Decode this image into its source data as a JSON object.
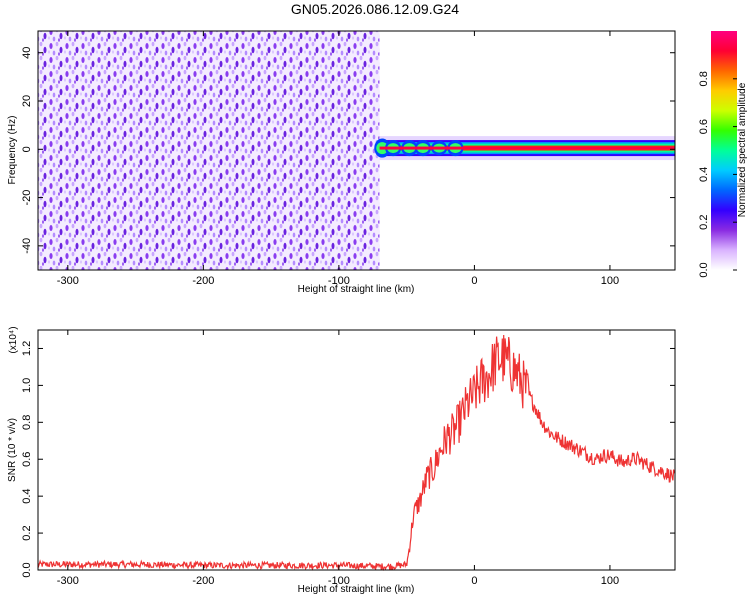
{
  "page": {
    "title": "GN05.2026.086.12.09.G24"
  },
  "chart_data": [
    {
      "type": "heatmap",
      "title": "",
      "xlabel": "Height of straight line (km)",
      "ylabel": "Frequency (Hz)",
      "xlim": [
        -322,
        148
      ],
      "ylim": [
        -50,
        49
      ],
      "xticks": [
        -300,
        -200,
        -100,
        0,
        100
      ],
      "yticks": [
        -40,
        -20,
        0,
        20,
        40
      ],
      "noise_region": {
        "x_range": [
          -322,
          -70
        ],
        "freq_range": [
          -50,
          49
        ],
        "level": "0.1-0.3"
      },
      "signal_band": {
        "x_range": [
          -70,
          148
        ],
        "frequency": 0.5,
        "bandwidth": 2,
        "peak_level": 0.95
      },
      "colorbar": {
        "label": "Normalized spectral amplitude",
        "range": [
          0,
          1
        ],
        "ticks": [
          "0.0",
          "0.2",
          "0.4",
          "0.6",
          "0.8"
        ],
        "colors": [
          "#ffffff",
          "#d9b3ff",
          "#8a2be2",
          "#3300ff",
          "#0066ff",
          "#00ccff",
          "#00ff99",
          "#33ff00",
          "#ccff00",
          "#ffcc00",
          "#ff6600",
          "#ff0033",
          "#ff0080"
        ]
      }
    },
    {
      "type": "line",
      "title": "",
      "xlabel": "Height of straight line (km)",
      "ylabel": "SNR (10 * v/v)",
      "ylabel_scale": "(x10⁴)",
      "xlim": [
        -322,
        148
      ],
      "ylim": [
        0,
        1.3
      ],
      "xticks": [
        -300,
        -200,
        -100,
        0,
        100
      ],
      "yticks": [
        "0.0",
        "0.2",
        "0.4",
        "0.6",
        "0.8",
        "1.0",
        "1.2"
      ],
      "color": "#ee3333",
      "series": [
        {
          "x": [
            -322,
            -300,
            -250,
            -200,
            -150,
            -100,
            -70,
            -60,
            -50,
            -48,
            -45,
            -40,
            -35,
            -30,
            -25,
            -20,
            -15,
            -10,
            -5,
            0,
            5,
            10,
            15,
            20,
            25,
            30,
            35,
            40,
            45,
            50,
            55,
            60,
            70,
            80,
            90,
            95,
            100,
            110,
            115,
            120,
            130,
            140,
            148
          ],
          "y": [
            0.03,
            0.03,
            0.03,
            0.025,
            0.025,
            0.025,
            0.02,
            0.02,
            0.03,
            0.12,
            0.3,
            0.38,
            0.5,
            0.55,
            0.65,
            0.72,
            0.75,
            0.82,
            0.9,
            0.95,
            1.02,
            1.05,
            1.12,
            1.15,
            1.12,
            1.08,
            1.02,
            0.95,
            0.88,
            0.8,
            0.75,
            0.72,
            0.68,
            0.64,
            0.6,
            0.62,
            0.62,
            0.58,
            0.6,
            0.6,
            0.56,
            0.53,
            0.5
          ]
        }
      ]
    }
  ]
}
